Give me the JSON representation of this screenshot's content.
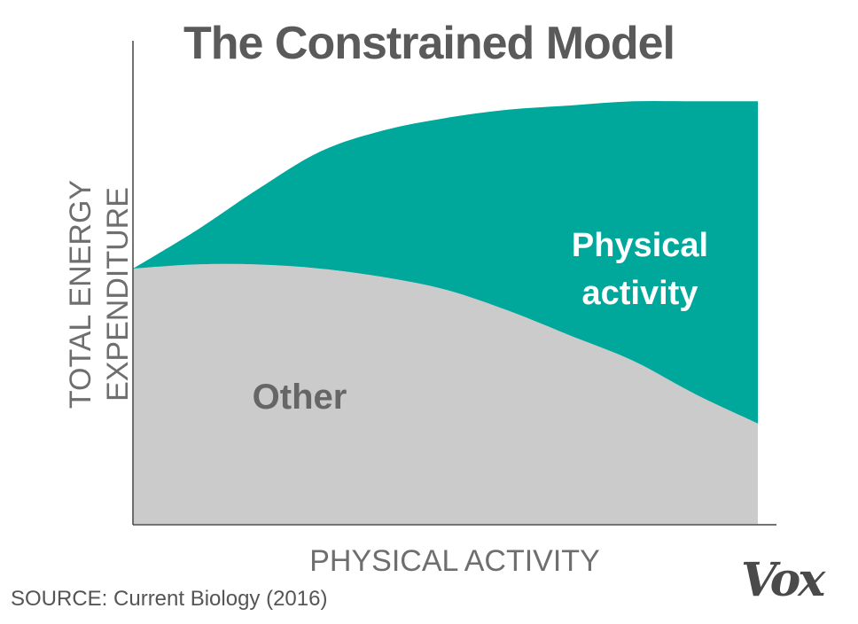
{
  "chart_data": {
    "type": "area",
    "title": "The Constrained Model",
    "xlabel": "PHYSICAL ACTIVITY",
    "ylabel": [
      "TOTAL ENERGY",
      "EXPENDITURE"
    ],
    "xlim": [
      0,
      1
    ],
    "ylim": [
      0,
      1
    ],
    "stacked": true,
    "x": [
      0,
      0.1,
      0.2,
      0.3,
      0.4,
      0.5,
      0.6,
      0.7,
      0.8,
      0.9,
      1.0
    ],
    "series": [
      {
        "name": "Other",
        "color": "#cbcbcb",
        "label_color": "#666666",
        "values": [
          0.61,
          0.62,
          0.62,
          0.61,
          0.59,
          0.56,
          0.51,
          0.45,
          0.39,
          0.31,
          0.24
        ]
      },
      {
        "name": "Physical activity",
        "label_lines": [
          "Physical",
          "activity"
        ],
        "color": "#00a89c",
        "label_color": "#ffffff",
        "values": [
          0,
          0.08,
          0.18,
          0.28,
          0.35,
          0.41,
          0.48,
          0.55,
          0.62,
          0.7,
          0.77
        ]
      }
    ]
  },
  "source": "SOURCE: Current Biology (2016)",
  "logo": "Vox"
}
